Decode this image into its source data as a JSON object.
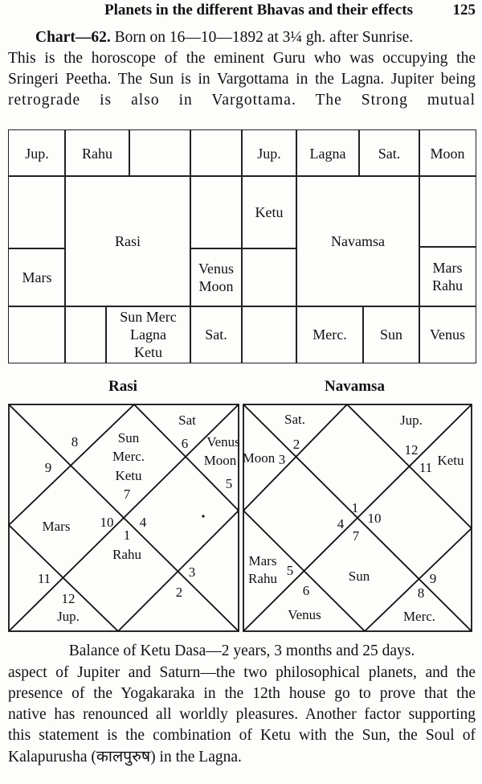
{
  "header": {
    "title": "Planets in the different Bhavas and their effects",
    "page_number": "125"
  },
  "intro": {
    "chart_label": "Chart—62.",
    "line1_rest": " Born on 16—10—1892 at 3¼ gh. after Sunrise.",
    "line2": "This is the horoscope of the eminent Guru who was occupying the",
    "line3": "Sringeri Peetha. The Sun is in Vargottama in the Lagna. Jupiter being",
    "line4": "retrograde is also in Vargottama. The Strong mutual"
  },
  "south_charts": {
    "rasi": {
      "title": "Rasi",
      "cells": {
        "jup": "Jup.",
        "rahu": "Rahu",
        "mars": "Mars",
        "venus_moon": [
          "Venus",
          "Moon"
        ],
        "sat": "Sat.",
        "sun_merc_lagna_ketu": [
          "Sun Merc",
          "Lagna",
          "Ketu"
        ]
      }
    },
    "navamsa": {
      "title": "Navamsa",
      "cells": {
        "jup": "Jup.",
        "lagna": "Lagna",
        "sat": "Sat.",
        "moon": "Moon",
        "ketu": "Ketu",
        "mars_rahu": [
          "Mars",
          "Rahu"
        ],
        "merc": "Merc.",
        "sun": "Sun",
        "venus": "Venus"
      }
    }
  },
  "north_charts": {
    "rasi": {
      "title": "Rasi",
      "labels": {
        "sat": "Sat",
        "h8": "8",
        "sun": "Sun",
        "merc": "Merc.",
        "ketu": "Ketu",
        "h7": "7",
        "h9": "9",
        "h6": "6",
        "venus": "Venus",
        "moon": "Moon",
        "h5": "5",
        "mars": "Mars",
        "h10": "10",
        "h4": "4",
        "h1": "1",
        "rahu": "Rahu",
        "h11": "11",
        "h3": "3",
        "h2": "2",
        "h12": "12",
        "jup": "Jup."
      }
    },
    "navamsa": {
      "title": "Navamsa",
      "labels": {
        "sat": "Sat.",
        "jup": "Jup.",
        "h2": "2",
        "moon": "Moon",
        "h3": "3",
        "h12": "12",
        "h11": "11",
        "ketu": "Ketu",
        "h1": "1",
        "h10": "10",
        "h4": "4",
        "h7": "7",
        "mars": "Mars",
        "h5": "5",
        "rahu": "Rahu",
        "sun": "Sun",
        "h6": "6",
        "h9": "9",
        "h8": "8",
        "venus": "Venus",
        "merc": "Merc."
      }
    }
  },
  "dasa_balance": "Balance of Ketu Dasa—2 years, 3 months and 25 days.",
  "body": {
    "line1": "aspect of Jupiter and Saturn—the two philosophical planets, and the",
    "line2": "presence of the Yogakaraka in the 12th house go to prove that the",
    "line3": "native has renounced all worldly pleasures. Another factor supporting",
    "line4": "this statement is the combination of Ketu with the Sun, the Soul of",
    "line5": "Kalapurusha (कालपुरुष) in the Lagna."
  }
}
